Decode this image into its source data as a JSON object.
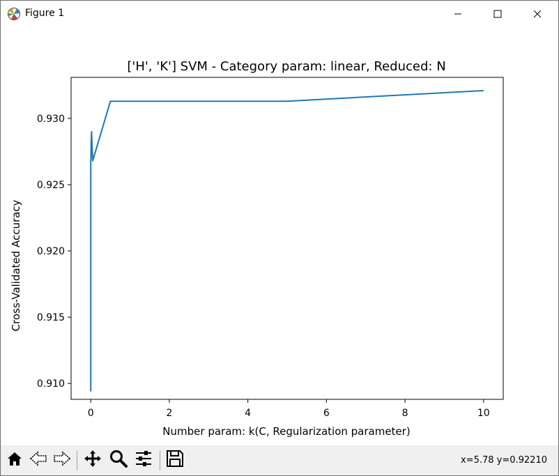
{
  "window": {
    "title": "Figure 1",
    "icons": {
      "app": "matplotlib-figure-icon",
      "minimize": "minimize-icon",
      "maximize": "maximize-icon",
      "close": "close-icon"
    }
  },
  "toolbar": {
    "buttons": [
      "home-icon",
      "back-arrow-icon",
      "forward-arrow-icon",
      "pan-move-icon",
      "zoom-magnifier-icon",
      "configure-subplots-icon",
      "save-disk-icon"
    ],
    "coords": "x=5.78 y=0.92210"
  },
  "chart_data": {
    "type": "line",
    "title": "['H', 'K'] SVM - Category param: linear, Reduced: N",
    "xlabel": "Number param: k(C, Regularization parameter)",
    "ylabel": "Cross-Validated Accuracy",
    "xlim": [
      -0.5,
      10.5
    ],
    "ylim": [
      0.9088,
      0.9331
    ],
    "xticks": [
      0,
      2,
      4,
      6,
      8,
      10
    ],
    "xtick_labels": [
      "0",
      "2",
      "4",
      "6",
      "8",
      "10"
    ],
    "yticks": [
      0.91,
      0.915,
      0.92,
      0.925,
      0.93
    ],
    "ytick_labels": [
      "0.910",
      "0.915",
      "0.920",
      "0.925",
      "0.930"
    ],
    "grid": false,
    "color": "#1f77b4",
    "series": [
      {
        "x": [
          0.0001,
          0.001,
          0.005,
          0.01,
          0.02,
          0.05,
          0.5,
          5,
          10
        ],
        "y": [
          0.9094,
          0.9268,
          0.927,
          0.928,
          0.929,
          0.9268,
          0.9313,
          0.9313,
          0.9321
        ]
      }
    ]
  }
}
